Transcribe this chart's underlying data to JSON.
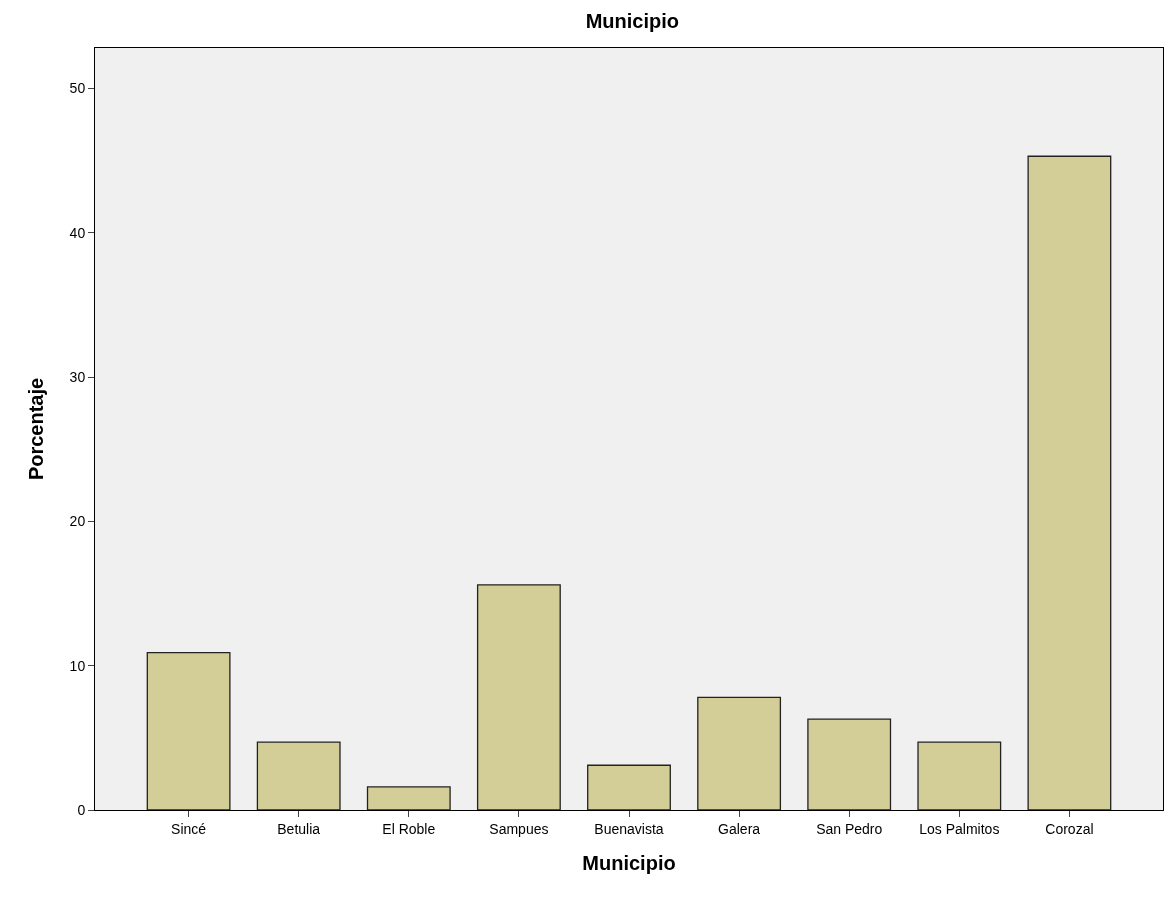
{
  "chart_data": {
    "type": "bar",
    "title": "Municipio",
    "xlabel": "Municipio",
    "ylabel": "Porcentaje",
    "categories": [
      "Sincé",
      "Betulia",
      "El Roble",
      "Sampues",
      "Buenavista",
      "Galera",
      "San Pedro",
      "Los Palmitos",
      "Corozal"
    ],
    "values": [
      10.9,
      4.7,
      1.6,
      15.6,
      3.1,
      7.8,
      6.3,
      4.7,
      45.3
    ],
    "color": "#d3ce97",
    "ylim": [
      0,
      52.8
    ],
    "yticks": [
      0,
      10,
      20,
      30,
      40,
      50
    ],
    "grid": false
  }
}
